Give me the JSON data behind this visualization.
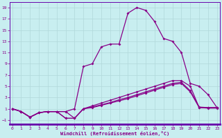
{
  "xlabel": "Windchill (Refroidissement éolien,°C)",
  "background_color": "#c8eef0",
  "grid_color": "#b0d8da",
  "line_color": "#880088",
  "spine_color": "#6600aa",
  "x_ticks": [
    0,
    1,
    2,
    3,
    4,
    5,
    6,
    7,
    8,
    9,
    10,
    11,
    12,
    13,
    14,
    15,
    16,
    17,
    18,
    19,
    20,
    21,
    22,
    23
  ],
  "y_ticks": [
    -1,
    1,
    3,
    5,
    7,
    9,
    11,
    13,
    15,
    17,
    19
  ],
  "xlim": [
    -0.3,
    23.3
  ],
  "ylim": [
    -1.8,
    20.0
  ],
  "curve1_x": [
    0,
    1,
    2,
    3,
    4,
    5,
    6,
    7,
    8,
    9,
    10,
    11,
    12,
    13,
    14,
    15,
    16,
    17,
    18,
    19,
    20,
    21,
    22,
    23
  ],
  "curve1_y": [
    1.0,
    0.5,
    -0.5,
    0.3,
    0.5,
    0.5,
    0.5,
    1.0,
    8.5,
    9.0,
    12.0,
    12.5,
    12.5,
    18.0,
    19.0,
    18.5,
    16.5,
    13.5,
    13.0,
    11.0,
    5.5,
    5.0,
    3.5,
    1.2
  ],
  "curve2_x": [
    0,
    1,
    2,
    3,
    4,
    5,
    6,
    7,
    8,
    9,
    10,
    11,
    12,
    13,
    14,
    15,
    16,
    17,
    18,
    19,
    20,
    21,
    22,
    23
  ],
  "curve2_y": [
    1.0,
    0.5,
    -0.5,
    0.3,
    0.5,
    0.5,
    0.5,
    -0.7,
    1.0,
    1.5,
    2.0,
    2.5,
    3.0,
    3.5,
    4.0,
    4.5,
    5.0,
    5.5,
    6.0,
    6.0,
    5.0,
    1.2,
    1.2,
    1.2
  ],
  "curve3_x": [
    0,
    1,
    2,
    3,
    4,
    5,
    6,
    7,
    8,
    9,
    10,
    11,
    12,
    13,
    14,
    15,
    16,
    17,
    18,
    19,
    20,
    21,
    22,
    23
  ],
  "curve3_y": [
    1.0,
    0.5,
    -0.5,
    0.3,
    0.5,
    0.5,
    -0.7,
    -0.7,
    1.0,
    1.3,
    1.7,
    2.1,
    2.6,
    3.0,
    3.5,
    4.0,
    4.5,
    5.0,
    5.5,
    5.7,
    4.2,
    1.3,
    1.2,
    1.2
  ],
  "curve4_x": [
    0,
    1,
    2,
    3,
    4,
    5,
    6,
    7,
    8,
    9,
    10,
    11,
    12,
    13,
    14,
    15,
    16,
    17,
    18,
    19,
    20,
    21,
    22,
    23
  ],
  "curve4_y": [
    1.0,
    0.5,
    -0.5,
    0.3,
    0.5,
    0.5,
    -0.7,
    -0.7,
    1.0,
    1.2,
    1.6,
    2.0,
    2.4,
    2.8,
    3.3,
    3.8,
    4.3,
    4.8,
    5.3,
    5.5,
    4.0,
    1.2,
    1.1,
    1.1
  ]
}
